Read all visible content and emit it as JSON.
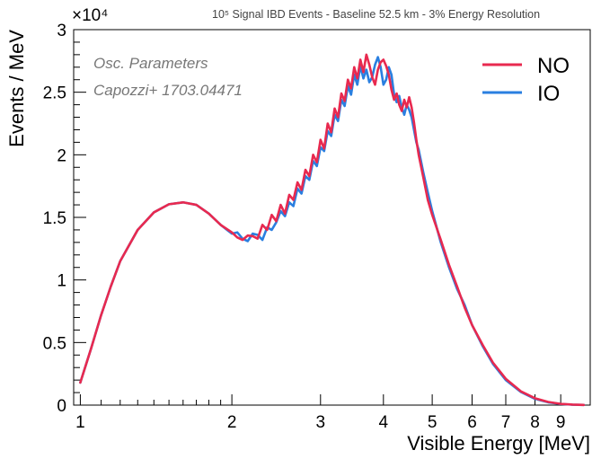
{
  "chart_data": {
    "type": "line",
    "title": "10⁵ Signal IBD Events - Baseline 52.5 km - 3% Energy Resolution",
    "xlabel": "Visible Energy [MeV]",
    "ylabel": "Events / MeV",
    "y_multiplier": "×10⁴",
    "x_scale": "log",
    "xlim": [
      0.97,
      10.3
    ],
    "ylim": [
      0,
      3
    ],
    "x_ticks": [
      1,
      2,
      3,
      4,
      5,
      6,
      7,
      8,
      9
    ],
    "y_ticks": [
      0,
      0.5,
      1,
      1.5,
      2,
      2.5,
      3
    ],
    "y_tick_labels": [
      "0",
      "0.5",
      "1",
      "1.5",
      "2",
      "2.5",
      "3"
    ],
    "grid": false,
    "legend_position": "top-right",
    "annotations": [
      "Osc. Parameters",
      "Capozzi+ 1703.04471"
    ],
    "series": [
      {
        "name": "NO",
        "color": "#e8294f",
        "x": [
          1.0,
          1.05,
          1.1,
          1.15,
          1.2,
          1.3,
          1.4,
          1.5,
          1.6,
          1.7,
          1.8,
          1.9,
          2.0,
          2.05,
          2.1,
          2.15,
          2.2,
          2.25,
          2.3,
          2.35,
          2.4,
          2.45,
          2.5,
          2.55,
          2.6,
          2.65,
          2.7,
          2.75,
          2.8,
          2.85,
          2.9,
          2.95,
          3.0,
          3.05,
          3.1,
          3.15,
          3.2,
          3.25,
          3.3,
          3.35,
          3.4,
          3.45,
          3.5,
          3.55,
          3.6,
          3.65,
          3.7,
          3.75,
          3.8,
          3.85,
          3.9,
          3.95,
          4.0,
          4.05,
          4.1,
          4.15,
          4.2,
          4.25,
          4.3,
          4.35,
          4.4,
          4.45,
          4.5,
          4.55,
          4.6,
          4.65,
          4.7,
          4.8,
          4.9,
          5.0,
          5.2,
          5.4,
          5.6,
          5.8,
          6.0,
          6.3,
          6.6,
          7.0,
          7.5,
          8.0,
          8.5,
          9.0,
          9.5,
          10.0
        ],
        "y": [
          0.18,
          0.45,
          0.72,
          0.95,
          1.15,
          1.4,
          1.54,
          1.605,
          1.62,
          1.6,
          1.53,
          1.44,
          1.38,
          1.34,
          1.32,
          1.355,
          1.35,
          1.33,
          1.44,
          1.4,
          1.52,
          1.47,
          1.6,
          1.53,
          1.68,
          1.64,
          1.78,
          1.72,
          1.88,
          1.83,
          2.0,
          1.94,
          2.12,
          2.05,
          2.25,
          2.18,
          2.37,
          2.3,
          2.49,
          2.43,
          2.6,
          2.53,
          2.7,
          2.61,
          2.76,
          2.66,
          2.8,
          2.72,
          2.62,
          2.56,
          2.68,
          2.74,
          2.76,
          2.71,
          2.64,
          2.52,
          2.44,
          2.49,
          2.4,
          2.35,
          2.44,
          2.38,
          2.46,
          2.38,
          2.26,
          2.12,
          2.0,
          1.82,
          1.64,
          1.52,
          1.32,
          1.12,
          0.95,
          0.78,
          0.64,
          0.48,
          0.34,
          0.21,
          0.11,
          0.055,
          0.025,
          0.01,
          0.004,
          0.001
        ]
      },
      {
        "name": "IO",
        "color": "#2a7fe0",
        "x": [
          1.0,
          1.05,
          1.1,
          1.15,
          1.2,
          1.3,
          1.4,
          1.5,
          1.6,
          1.7,
          1.8,
          1.9,
          2.0,
          2.05,
          2.1,
          2.15,
          2.2,
          2.25,
          2.3,
          2.35,
          2.4,
          2.45,
          2.5,
          2.55,
          2.6,
          2.65,
          2.7,
          2.75,
          2.8,
          2.85,
          2.9,
          2.95,
          3.0,
          3.05,
          3.1,
          3.15,
          3.2,
          3.25,
          3.3,
          3.35,
          3.4,
          3.45,
          3.5,
          3.55,
          3.6,
          3.65,
          3.7,
          3.75,
          3.8,
          3.85,
          3.9,
          3.95,
          4.0,
          4.05,
          4.1,
          4.15,
          4.2,
          4.25,
          4.3,
          4.35,
          4.4,
          4.45,
          4.5,
          4.55,
          4.6,
          4.65,
          4.7,
          4.8,
          4.9,
          5.0,
          5.2,
          5.4,
          5.6,
          5.8,
          6.0,
          6.3,
          6.6,
          7.0,
          7.5,
          8.0,
          8.5,
          9.0,
          9.5,
          10.0
        ],
        "y": [
          0.18,
          0.45,
          0.72,
          0.95,
          1.15,
          1.4,
          1.54,
          1.605,
          1.62,
          1.6,
          1.53,
          1.44,
          1.37,
          1.38,
          1.33,
          1.31,
          1.37,
          1.36,
          1.32,
          1.42,
          1.4,
          1.46,
          1.55,
          1.51,
          1.62,
          1.59,
          1.73,
          1.69,
          1.83,
          1.8,
          1.95,
          1.91,
          2.06,
          2.03,
          2.19,
          2.15,
          2.32,
          2.27,
          2.44,
          2.39,
          2.55,
          2.48,
          2.64,
          2.56,
          2.71,
          2.61,
          2.68,
          2.58,
          2.62,
          2.72,
          2.78,
          2.7,
          2.56,
          2.6,
          2.7,
          2.64,
          2.48,
          2.42,
          2.47,
          2.38,
          2.32,
          2.4,
          2.36,
          2.3,
          2.2,
          2.1,
          2.04,
          1.86,
          1.7,
          1.55,
          1.3,
          1.1,
          0.93,
          0.8,
          0.64,
          0.47,
          0.33,
          0.2,
          0.105,
          0.05,
          0.022,
          0.009,
          0.003,
          0.001
        ]
      }
    ]
  }
}
